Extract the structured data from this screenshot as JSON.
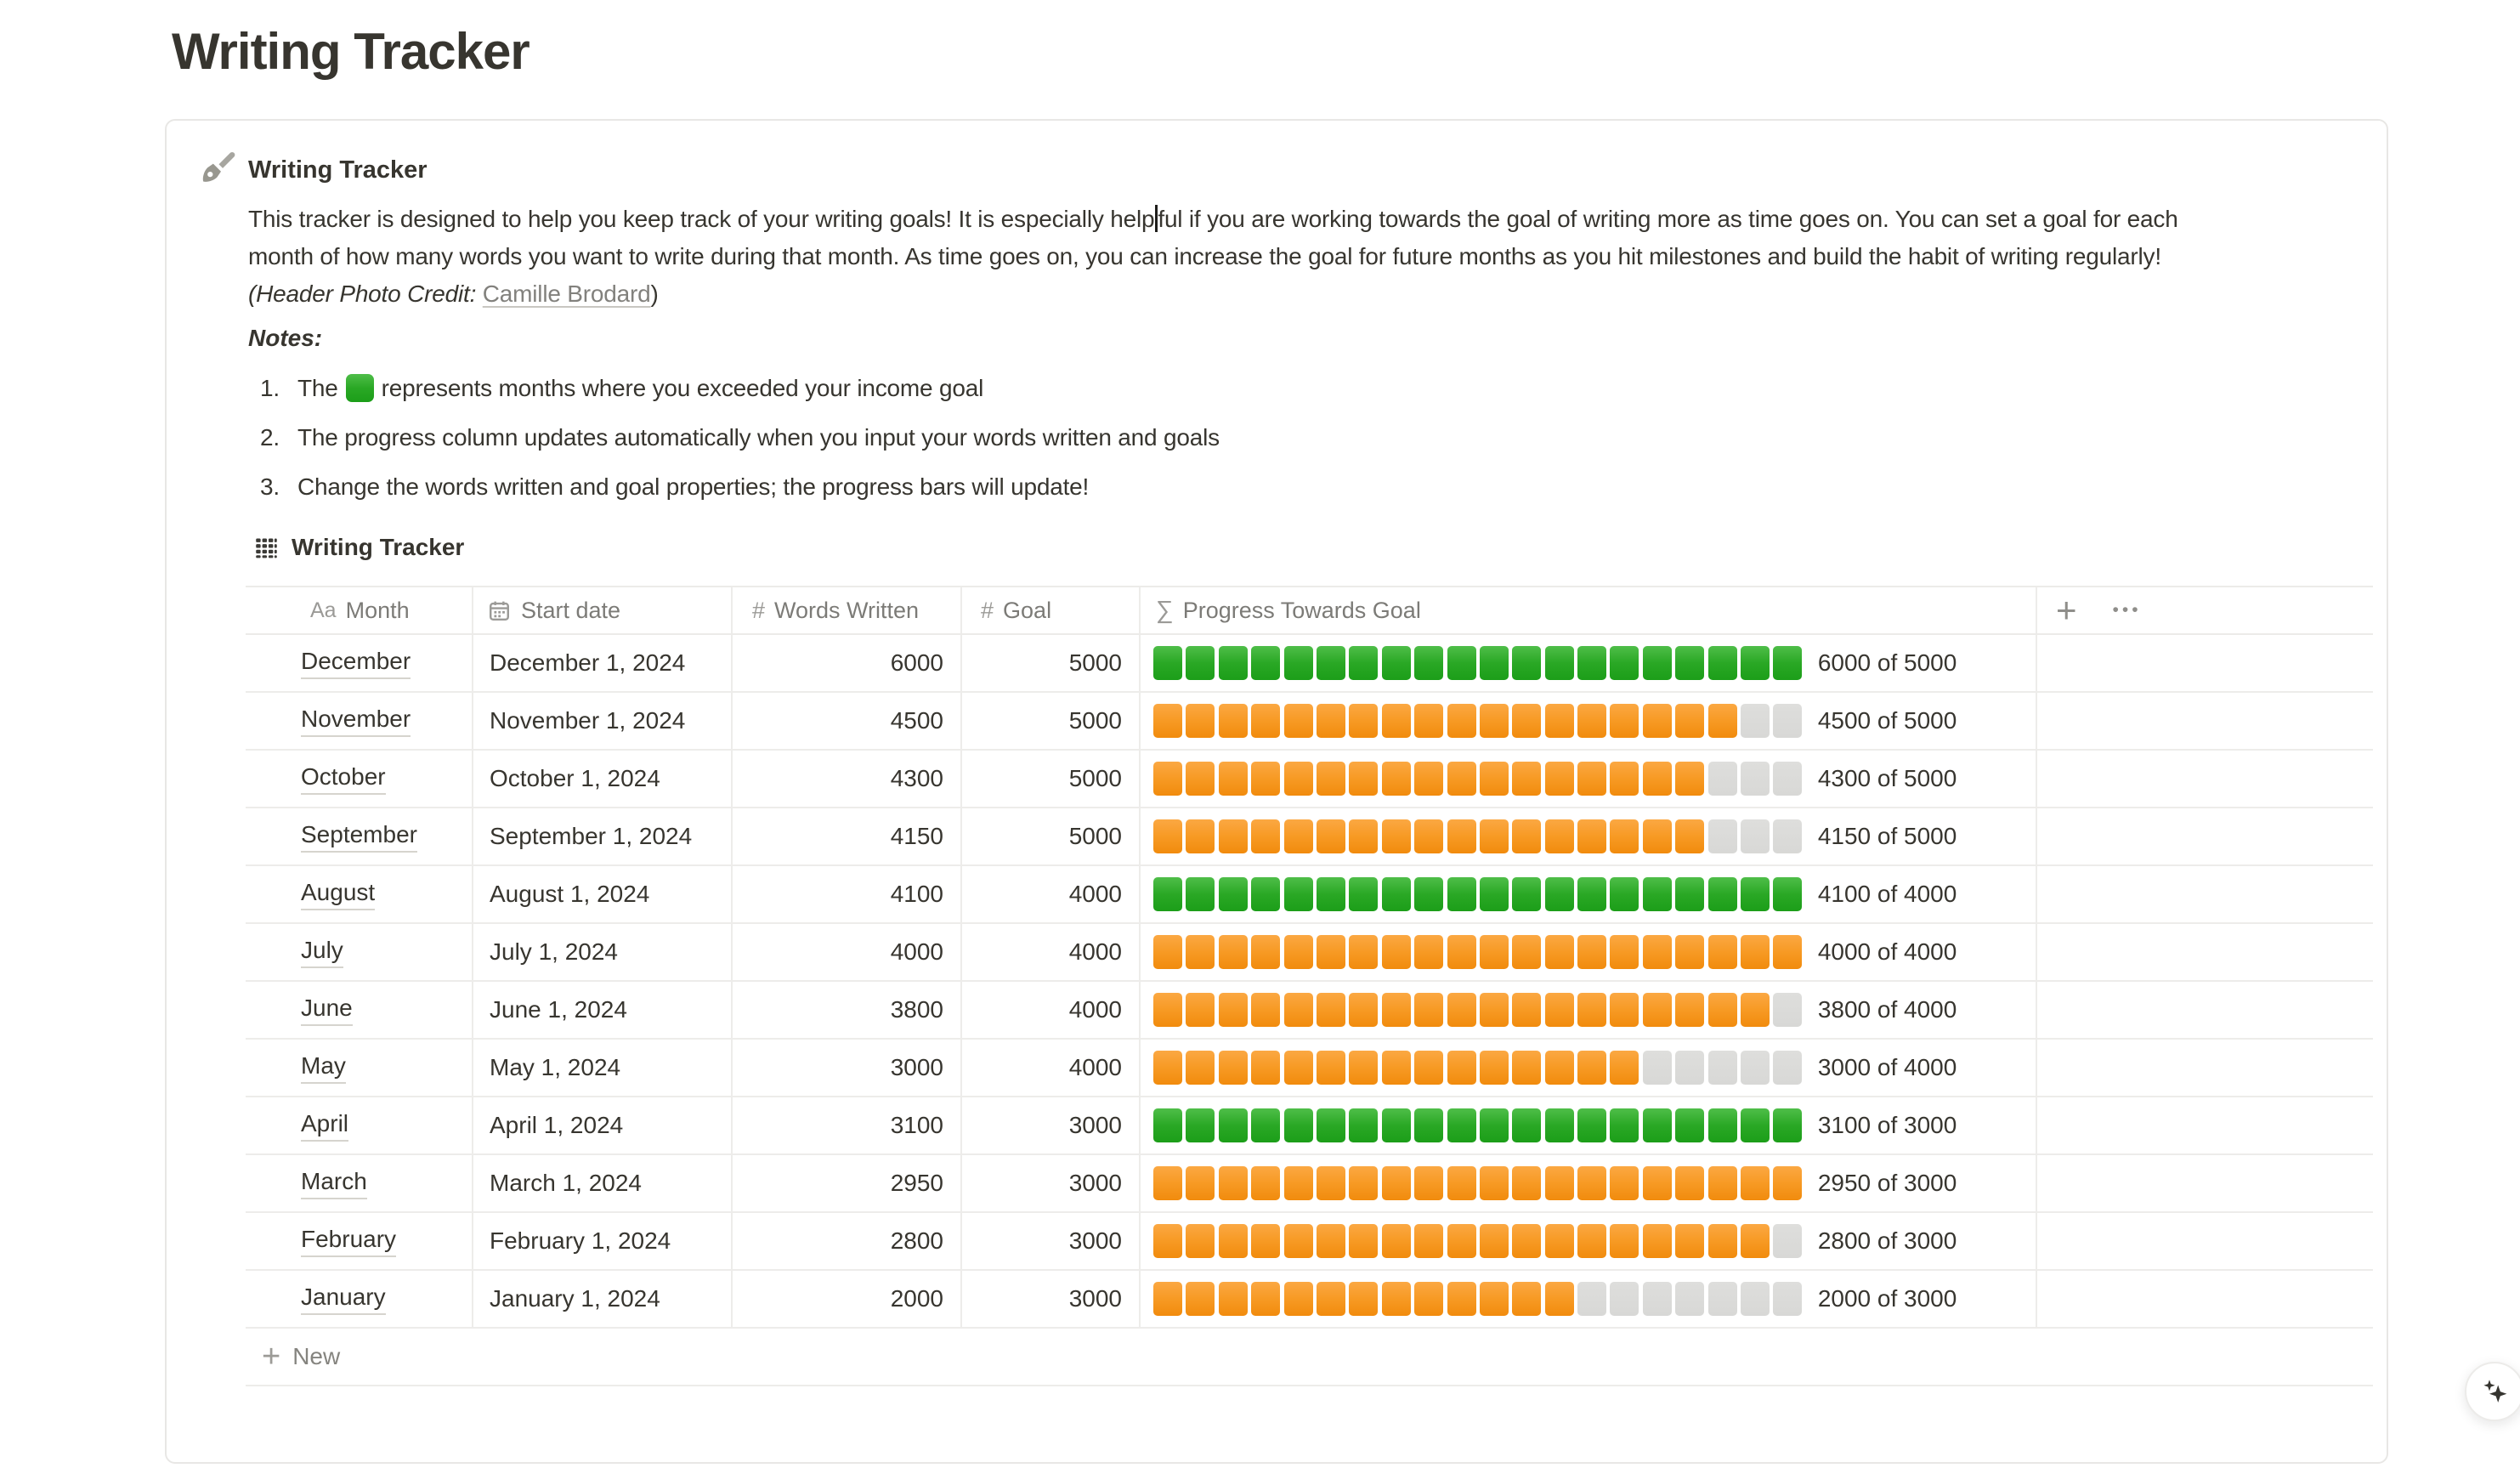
{
  "page_title": "Writing Tracker",
  "callout": {
    "icon": "paintbrush-icon",
    "heading": "Writing Tracker",
    "paragraph": {
      "line1_before_caret": "This tracker is designed to help you keep track of your writing goals! It is especially help",
      "line1_after_caret": "ful if you are working towards the goal of writing more as time goes on. You can set a goal for each",
      "line2": "month of how many words you want to write during that month. As time goes on, you can increase the goal for future months as you hit milestones and build the habit of writing regularly!",
      "credit_prefix": "(",
      "credit_label": "Header Photo Credit:",
      "credit_link": "Camille Brodard",
      "credit_suffix": ")"
    },
    "notes_label": "Notes:",
    "notes": [
      {
        "number": "1.",
        "before": "The",
        "square_icon": "green-square-emoji",
        "after": "represents months where you exceeded your income goal"
      },
      {
        "number": "2.",
        "text": "The progress column updates automatically when you input your words written and goals"
      },
      {
        "number": "3.",
        "text": "Change the words written and goal properties; the progress bars will update!"
      }
    ]
  },
  "table": {
    "title": "Writing Tracker",
    "title_icon": "table-icon",
    "columns": [
      {
        "icon": "text-type-icon",
        "icon_glyph": "Aa",
        "label": "Month"
      },
      {
        "icon": "calendar-icon",
        "icon_glyph": "",
        "label": "Start date"
      },
      {
        "icon": "number-icon",
        "icon_glyph": "#",
        "label": "Words Written"
      },
      {
        "icon": "number-icon",
        "icon_glyph": "#",
        "label": "Goal"
      },
      {
        "icon": "formula-icon",
        "icon_glyph": "∑",
        "label": "Progress Towards Goal"
      }
    ],
    "add_property_label": "+",
    "more_label": "•••",
    "total_blocks": 20,
    "rows": [
      {
        "month": "December",
        "start_date": "December 1, 2024",
        "words": "6000",
        "goal": "5000",
        "filled": 20,
        "color": "green",
        "progress_label": "6000 of 5000"
      },
      {
        "month": "November",
        "start_date": "November 1, 2024",
        "words": "4500",
        "goal": "5000",
        "filled": 18,
        "color": "orange",
        "progress_label": "4500 of 5000"
      },
      {
        "month": "October",
        "start_date": "October 1, 2024",
        "words": "4300",
        "goal": "5000",
        "filled": 17,
        "color": "orange",
        "progress_label": "4300 of 5000"
      },
      {
        "month": "September",
        "start_date": "September 1, 2024",
        "words": "4150",
        "goal": "5000",
        "filled": 17,
        "color": "orange",
        "progress_label": "4150 of 5000"
      },
      {
        "month": "August",
        "start_date": "August 1, 2024",
        "words": "4100",
        "goal": "4000",
        "filled": 20,
        "color": "green",
        "progress_label": "4100 of 4000"
      },
      {
        "month": "July",
        "start_date": "July 1, 2024",
        "words": "4000",
        "goal": "4000",
        "filled": 20,
        "color": "orange",
        "progress_label": "4000 of 4000"
      },
      {
        "month": "June",
        "start_date": "June 1, 2024",
        "words": "3800",
        "goal": "4000",
        "filled": 19,
        "color": "orange",
        "progress_label": "3800 of 4000"
      },
      {
        "month": "May",
        "start_date": "May 1, 2024",
        "words": "3000",
        "goal": "4000",
        "filled": 15,
        "color": "orange",
        "progress_label": "3000 of 4000"
      },
      {
        "month": "April",
        "start_date": "April 1, 2024",
        "words": "3100",
        "goal": "3000",
        "filled": 20,
        "color": "green",
        "progress_label": "3100 of 3000"
      },
      {
        "month": "March",
        "start_date": "March 1, 2024",
        "words": "2950",
        "goal": "3000",
        "filled": 20,
        "color": "orange",
        "progress_label": "2950 of 3000"
      },
      {
        "month": "February",
        "start_date": "February 1, 2024",
        "words": "2800",
        "goal": "3000",
        "filled": 19,
        "color": "orange",
        "progress_label": "2800 of 3000"
      },
      {
        "month": "January",
        "start_date": "January 1, 2024",
        "words": "2000",
        "goal": "3000",
        "filled": 13,
        "color": "orange",
        "progress_label": "2000 of 3000"
      }
    ],
    "new_row_plus": "+",
    "new_row_label": "New"
  },
  "ai_button_icon": "sparkles-icon",
  "colors": {
    "text": "#37352F",
    "header_gray": "#787774",
    "border": "#ECEBE9",
    "progress_green": "#2AA825",
    "progress_orange": "#F79A24",
    "progress_empty": "#DBDBD9"
  }
}
